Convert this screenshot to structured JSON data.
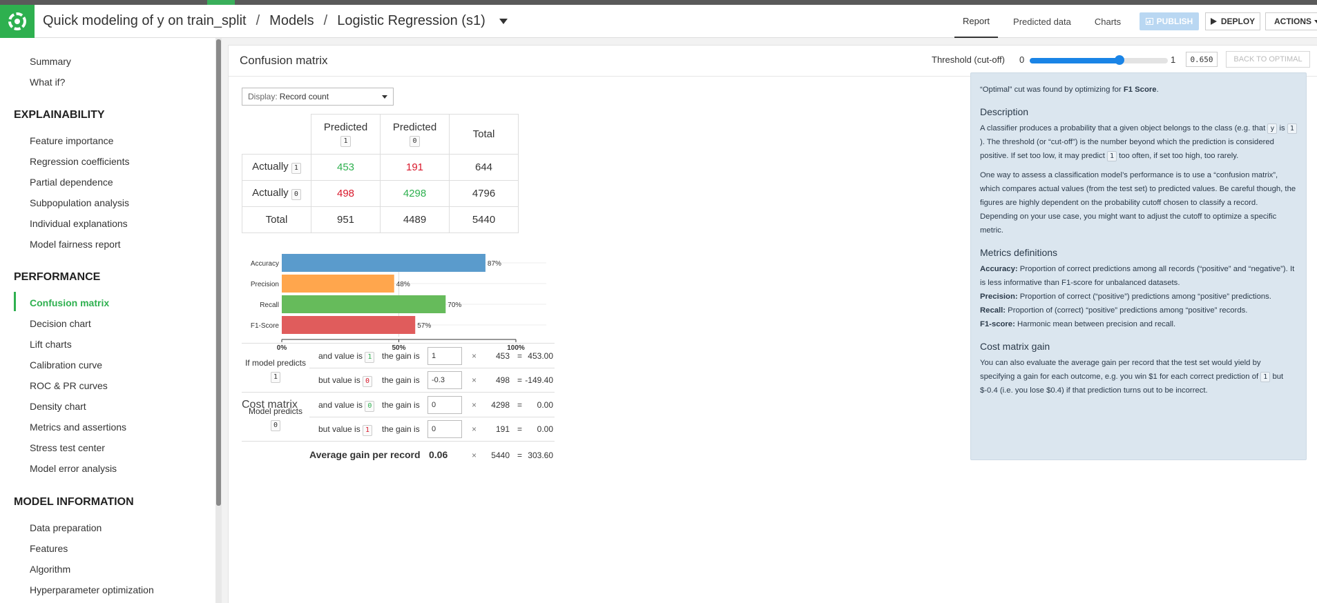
{
  "header": {
    "breadcrumbs": [
      "Quick modeling of y on train_split",
      "Models",
      "Logistic Regression (s1)"
    ],
    "breadcrumb_separator": "/",
    "tabs": [
      "Report",
      "Predicted data",
      "Charts"
    ],
    "active_tab": "Report",
    "publish_label": "PUBLISH",
    "deploy_label": "DEPLOY",
    "actions_label": "ACTIONS"
  },
  "sidebar": {
    "top_items": [
      "Summary",
      "What if?"
    ],
    "sections": [
      {
        "title": "EXPLAINABILITY",
        "items": [
          "Feature importance",
          "Regression coefficients",
          "Partial dependence",
          "Subpopulation analysis",
          "Individual explanations",
          "Model fairness report"
        ]
      },
      {
        "title": "PERFORMANCE",
        "items": [
          "Confusion matrix",
          "Decision chart",
          "Lift charts",
          "Calibration curve",
          "ROC & PR curves",
          "Density chart",
          "Metrics and assertions",
          "Stress test center",
          "Model error analysis"
        ]
      },
      {
        "title": "MODEL INFORMATION",
        "items": [
          "Data preparation",
          "Features",
          "Algorithm",
          "Hyperparameter optimization"
        ]
      }
    ],
    "active_item": "Confusion matrix"
  },
  "panel": {
    "title": "Confusion matrix",
    "threshold_label": "Threshold (cut-off)",
    "slider_min": "0",
    "slider_max": "1",
    "threshold_value": 0.65,
    "threshold_display": "0.650",
    "back_to_optimal": "BACK TO OPTIMAL"
  },
  "display": {
    "label": "Display:",
    "value": "Record count"
  },
  "matrix": {
    "predicted_label": "Predicted",
    "actually_label": "Actually",
    "total_label": "Total",
    "classes": [
      "1",
      "0"
    ],
    "rows": [
      {
        "actual": "1",
        "cells": [
          "453",
          "191"
        ],
        "total": "644"
      },
      {
        "actual": "0",
        "cells": [
          "498",
          "4298"
        ],
        "total": "4796"
      }
    ],
    "col_totals": [
      "951",
      "4489"
    ],
    "grand_total": "5440"
  },
  "chart_data": {
    "type": "bar",
    "orientation": "horizontal",
    "categories": [
      "Accuracy",
      "Precision",
      "Recall",
      "F1-Score"
    ],
    "values": [
      87,
      48,
      70,
      57
    ],
    "value_labels": [
      "87%",
      "48%",
      "70%",
      "57%"
    ],
    "colors": [
      "#5a9bcc",
      "#ffa64d",
      "#66bb5b",
      "#e05c5c"
    ],
    "xlim": [
      0,
      100
    ],
    "xticks": [
      "0%",
      "50%",
      "100%"
    ]
  },
  "cost": {
    "title": "Cost matrix",
    "groups": [
      {
        "label": "If model predicts",
        "pred": "1",
        "rows": [
          {
            "prefix": "and value is",
            "val": "1",
            "val_color": "green",
            "gain_label": "the gain is",
            "gain": "1",
            "count": "453",
            "result": "453.00"
          },
          {
            "prefix": "but value is",
            "val": "0",
            "val_color": "red",
            "gain_label": "the gain is",
            "gain": "-0.3",
            "count": "498",
            "result": "-149.40"
          }
        ]
      },
      {
        "label": "Model predicts",
        "pred": "0",
        "rows": [
          {
            "prefix": "and value is",
            "val": "0",
            "val_color": "green",
            "gain_label": "the gain is",
            "gain": "0",
            "count": "4298",
            "result": "0.00"
          },
          {
            "prefix": "but value is",
            "val": "1",
            "val_color": "red",
            "gain_label": "the gain is",
            "gain": "0",
            "count": "191",
            "result": "0.00"
          }
        ]
      }
    ],
    "times": "×",
    "equals": "=",
    "avg_label": "Average gain per record",
    "avg_value": "0.06",
    "avg_count": "5440",
    "avg_result": "303.60"
  },
  "help": {
    "optimal_pre": "“Optimal” cut was found by optimizing for ",
    "optimal_metric": "F1 Score",
    "optimal_post": ".",
    "desc_title": "Description",
    "desc1_a": "A classifier produces a probability that a given object belongs to the class (e.g. that ",
    "desc1_y": "y",
    "desc1_is": " is ",
    "desc1_one": "1",
    "desc1_b": "). The threshold (or “cut-off”) is the number beyond which the prediction is considered positive. If set too low, it may predict ",
    "desc1_one2": "1",
    "desc1_c": " too often, if set too high, too rarely.",
    "desc2": "One way to assess a classification model’s performance is to use a “confusion matrix”, which compares actual values (from the test set) to predicted values. Be careful though, the figures are highly dependent on the probability cutoff chosen to classify a record. Depending on your use case, you might want to adjust the cutoff to optimize a specific metric.",
    "metrics_title": "Metrics definitions",
    "m_acc_t": "Accuracy:",
    "m_acc": " Proportion of correct predictions among all records (“positive” and “negative”). It is less informative than F1-score for unbalanced datasets.",
    "m_prec_t": "Precision:",
    "m_prec": " Proportion of correct (“positive”) predictions among “positive” predictions.",
    "m_rec_t": "Recall:",
    "m_rec": " Proportion of (correct) “positive” predictions among “positive” records.",
    "m_f1_t": "F1-score:",
    "m_f1": " Harmonic mean between precision and recall.",
    "cost_title": "Cost matrix gain",
    "cost_a": "You can also evaluate the average gain per record that the test set would yield by specifying a gain for each outcome, e.g. you win $1 for each correct prediction of ",
    "cost_one": "1",
    "cost_b": " but $-0.4 (i.e. you lose $0.4) if that prediction turns out to be incorrect."
  }
}
